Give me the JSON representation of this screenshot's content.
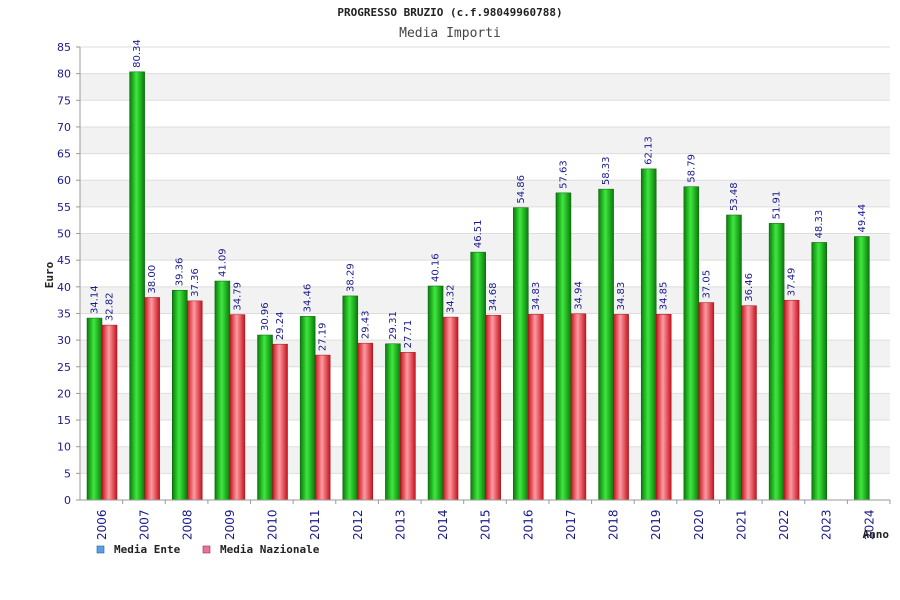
{
  "colors": {
    "ente_dark": "#0a7a0a",
    "ente_light": "#3ee83e",
    "naz_dark": "#c4141e",
    "naz_light": "#ff9aa2",
    "band": "#f2f2f2",
    "grid": "#dddddd",
    "legend_ente_swatch": "#5aa0e6",
    "legend_naz_swatch": "#e8749a"
  },
  "chart_data": {
    "type": "bar",
    "title": "PROGRESSO BRUZIO (c.f.98049960788)",
    "subtitle": "Media Importi",
    "xlabel": "Anno",
    "ylabel": "Euro",
    "ylim": [
      0,
      85
    ],
    "ytick_step": 5,
    "yticks": [
      "0",
      "5",
      "10",
      "15",
      "20",
      "25",
      "30",
      "35",
      "40",
      "45",
      "50",
      "55",
      "60",
      "65",
      "70",
      "75",
      "80",
      "85"
    ],
    "grid": true,
    "legend_position": "bottom-left",
    "categories": [
      "2006",
      "2007",
      "2008",
      "2009",
      "2010",
      "2011",
      "2012",
      "2013",
      "2014",
      "2015",
      "2016",
      "2017",
      "2018",
      "2019",
      "2020",
      "2021",
      "2022",
      "2023",
      "2024"
    ],
    "series": [
      {
        "name": "Media Ente",
        "values": [
          34.14,
          80.34,
          39.36,
          41.09,
          30.96,
          34.46,
          38.29,
          29.31,
          40.16,
          46.51,
          54.86,
          57.63,
          58.33,
          62.13,
          58.79,
          53.48,
          51.91,
          48.33,
          49.44
        ],
        "labels": [
          "34.14",
          "80.34",
          "39.36",
          "41.09",
          "30.96",
          "34.46",
          "38.29",
          "29.31",
          "40.16",
          "46.51",
          "54.86",
          "57.63",
          "58.33",
          "62.13",
          "58.79",
          "53.48",
          "51.91",
          "48.33",
          "49.44"
        ]
      },
      {
        "name": "Media Nazionale",
        "values": [
          32.82,
          38.0,
          37.36,
          34.79,
          29.24,
          27.19,
          29.43,
          27.71,
          34.32,
          34.68,
          34.83,
          34.94,
          34.83,
          34.85,
          37.05,
          36.46,
          37.49,
          null,
          null
        ],
        "labels": [
          "32.82",
          "38.00",
          "37.36",
          "34.79",
          "29.24",
          "27.19",
          "29.43",
          "27.71",
          "34.32",
          "34.68",
          "34.83",
          "34.94",
          "34.83",
          "34.85",
          "37.05",
          "36.46",
          "37.49",
          null,
          null
        ]
      }
    ]
  }
}
